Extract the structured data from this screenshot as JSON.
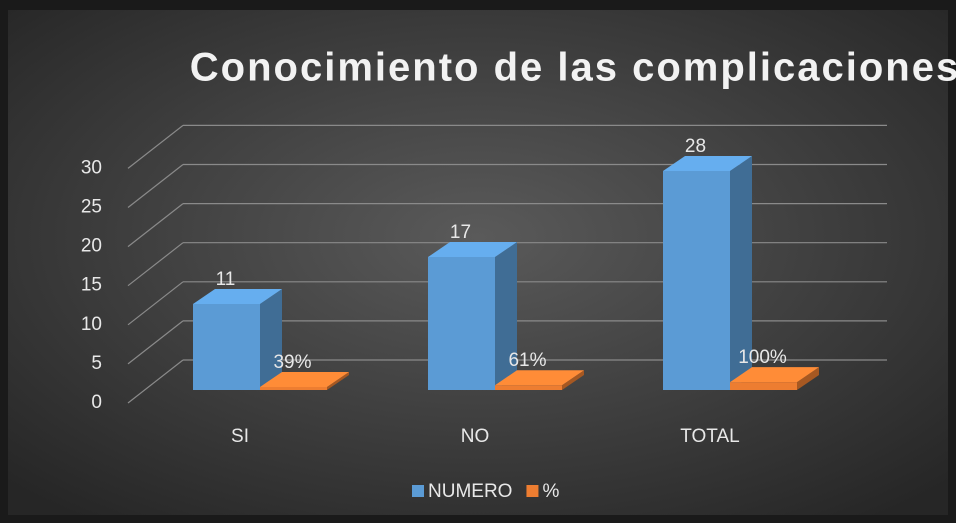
{
  "chart_data": {
    "type": "bar3d",
    "title": "Conocimiento de las complicaciones",
    "categories": [
      "SI",
      "NO",
      "TOTAL"
    ],
    "series": [
      {
        "name": "NUMERO",
        "color": "#5b9bd5",
        "values": [
          11,
          17,
          28
        ]
      },
      {
        "name": "%",
        "color": "#ed7d31",
        "values": [
          0.39,
          0.61,
          1.0
        ],
        "value_labels": [
          "39%",
          "61%",
          "100%"
        ]
      }
    ],
    "ylim": [
      0,
      30
    ],
    "yticks": [
      0,
      5,
      10,
      15,
      20,
      25,
      30
    ],
    "grid": true,
    "legend": "bottom"
  }
}
